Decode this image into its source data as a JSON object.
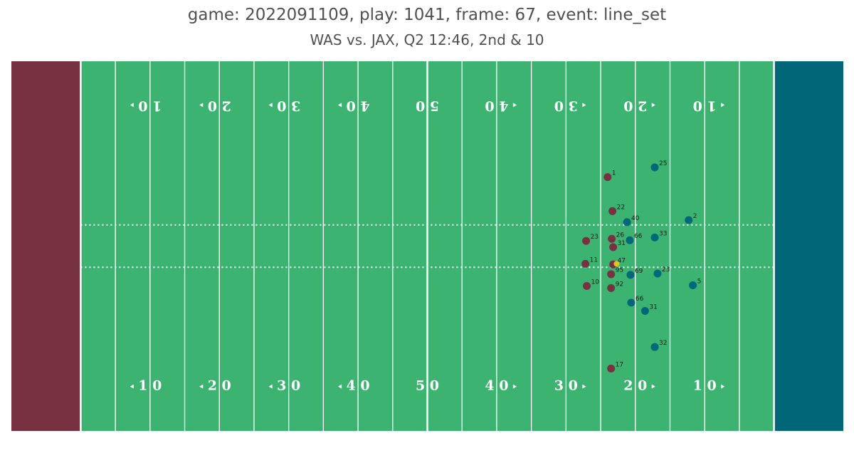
{
  "header": {
    "title": "game: 2022091109, play: 1041, frame: 67, event: line_set",
    "subtitle": "WAS vs. JAX, Q2 12:46, 2nd & 10"
  },
  "chart_data": {
    "type": "scatter",
    "x_range": [
      0,
      120
    ],
    "y_range": [
      0,
      53.3
    ],
    "colors": {
      "field": "#3cb371",
      "left_endzone": "#773141",
      "right_endzone": "#006778",
      "lines": "#ffffff",
      "home_team": "#773141",
      "away_team": "#006778",
      "football": "#e8c21c"
    },
    "yard_numbers": [
      {
        "x": 20,
        "label": "1 0",
        "arrow": "left"
      },
      {
        "x": 30,
        "label": "2 0",
        "arrow": "left"
      },
      {
        "x": 40,
        "label": "3 0",
        "arrow": "left"
      },
      {
        "x": 50,
        "label": "4 0",
        "arrow": "left"
      },
      {
        "x": 60,
        "label": "5 0",
        "arrow": "none"
      },
      {
        "x": 70,
        "label": "4 0",
        "arrow": "right"
      },
      {
        "x": 80,
        "label": "3 0",
        "arrow": "right"
      },
      {
        "x": 90,
        "label": "2 0",
        "arrow": "right"
      },
      {
        "x": 100,
        "label": "1 0",
        "arrow": "right"
      }
    ],
    "line_of_scrimmage": [],
    "hash_lines": [
      23.6,
      29.7
    ],
    "teams": [
      {
        "name": "WAS",
        "color": "#773141",
        "players": [
          {
            "jersey": "1",
            "x": 86.0,
            "y": 36.6
          },
          {
            "jersey": "22",
            "x": 86.7,
            "y": 31.7
          },
          {
            "jersey": "23",
            "x": 82.9,
            "y": 27.4
          },
          {
            "jersey": "26",
            "x": 86.6,
            "y": 27.7
          },
          {
            "jersey": "31",
            "x": 86.8,
            "y": 26.5
          },
          {
            "jersey": "11",
            "x": 82.8,
            "y": 24.1
          },
          {
            "jersey": "47",
            "x": 86.8,
            "y": 24.0
          },
          {
            "jersey": "95",
            "x": 86.5,
            "y": 22.6
          },
          {
            "jersey": "10",
            "x": 83.0,
            "y": 20.9
          },
          {
            "jersey": "92",
            "x": 86.5,
            "y": 20.6
          },
          {
            "jersey": "17",
            "x": 86.5,
            "y": 9.0
          }
        ]
      },
      {
        "name": "JAX",
        "color": "#006778",
        "players": [
          {
            "jersey": "25",
            "x": 92.8,
            "y": 38.0
          },
          {
            "jersey": "40",
            "x": 88.8,
            "y": 30.1
          },
          {
            "jersey": "2",
            "x": 97.7,
            "y": 30.4
          },
          {
            "jersey": "66",
            "x": 89.2,
            "y": 27.5
          },
          {
            "jersey": "33",
            "x": 92.8,
            "y": 27.9
          },
          {
            "jersey": "69",
            "x": 89.3,
            "y": 22.5
          },
          {
            "jersey": "23",
            "x": 93.2,
            "y": 22.7
          },
          {
            "jersey": "5",
            "x": 98.3,
            "y": 21.0
          },
          {
            "jersey": "66",
            "x": 89.4,
            "y": 18.5
          },
          {
            "jersey": "31",
            "x": 91.4,
            "y": 17.3
          },
          {
            "jersey": "32",
            "x": 92.8,
            "y": 12.1
          }
        ]
      }
    ],
    "football": {
      "x": 87.3,
      "y": 24.1
    }
  }
}
